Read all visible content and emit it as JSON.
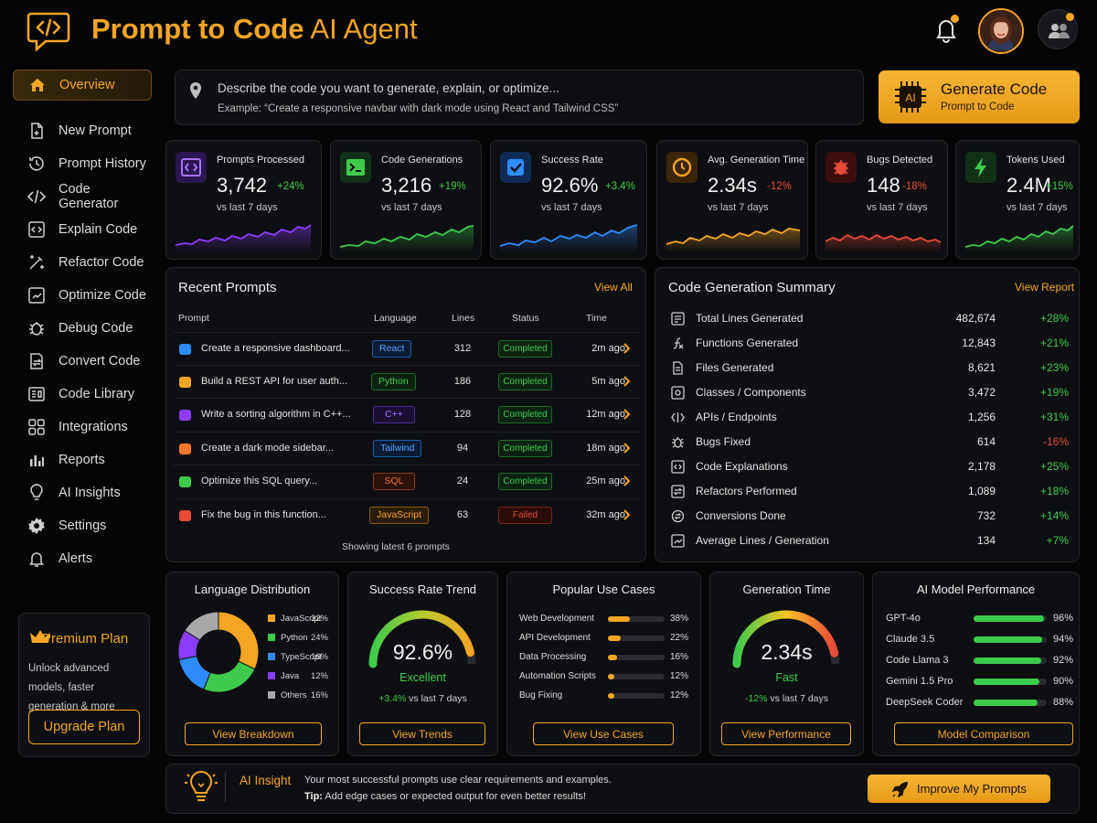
{
  "header": {
    "title_bold": "Prompt to Code",
    "title_light": " AI Agent",
    "logo_icon": "code-chat-icon"
  },
  "sidebar": {
    "items": [
      {
        "label": "Overview",
        "icon": "home-icon",
        "active": true
      },
      {
        "label": "New Prompt",
        "icon": "new-file-icon"
      },
      {
        "label": "Prompt History",
        "icon": "history-icon"
      },
      {
        "label": "Code Generator",
        "icon": "code-icon"
      },
      {
        "label": "Explain Code",
        "icon": "explain-icon"
      },
      {
        "label": "Refactor Code",
        "icon": "magic-wand-icon"
      },
      {
        "label": "Optimize Code",
        "icon": "optimize-icon"
      },
      {
        "label": "Debug Code",
        "icon": "bug-icon"
      },
      {
        "label": "Convert Code",
        "icon": "convert-icon"
      },
      {
        "label": "Code Library",
        "icon": "library-icon"
      },
      {
        "label": "Integrations",
        "icon": "grid-icon"
      },
      {
        "label": "Reports",
        "icon": "bar-chart-icon"
      },
      {
        "label": "AI Insights",
        "icon": "lightbulb-icon"
      },
      {
        "label": "Settings",
        "icon": "gear-icon"
      },
      {
        "label": "Alerts",
        "icon": "bell-icon"
      }
    ],
    "premium": {
      "title": "Premium Plan",
      "desc": "Unlock advanced models, faster generation & more",
      "button": "Upgrade Plan"
    }
  },
  "prompt": {
    "main": "Describe the code you want to generate, explain, or optimize...",
    "example": "Example: “Create a responsive navbar with dark mode using React and Tailwind CSS”"
  },
  "generate": {
    "badge": "AI",
    "label": "Generate Code",
    "sub": "Prompt to Code"
  },
  "stats": [
    {
      "label": "Prompts Processed",
      "value": "3,742",
      "change": "+24%",
      "sub": "vs last 7 days",
      "color": "#8b3dff",
      "trend": "up"
    },
    {
      "label": "Code Generations",
      "value": "3,216",
      "change": "+19%",
      "sub": "vs last 7 days",
      "color": "#3ecb4c",
      "trend": "up"
    },
    {
      "label": "Success Rate",
      "value": "92.6%",
      "change": "+3.4%",
      "sub": "vs last 7 days",
      "color": "#2f8cff",
      "trend": "up"
    },
    {
      "label": "Avg. Generation Time",
      "value": "2.34s",
      "change": "-12%",
      "sub": "vs last 7 days",
      "color": "#f5a524",
      "trend": "down"
    },
    {
      "label": "Bugs Detected",
      "value": "148",
      "change": "-18%",
      "sub": "vs last 7 days",
      "color": "#e84a3a",
      "trend": "down"
    },
    {
      "label": "Tokens Used",
      "value": "2.4M",
      "change": "+15%",
      "sub": "vs last 7 days",
      "color": "#3ecb4c",
      "trend": "up"
    }
  ],
  "recent": {
    "title": "Recent Prompts",
    "view_all": "View All",
    "columns": [
      "Prompt",
      "Language",
      "Lines",
      "Status",
      "Time"
    ],
    "rows": [
      {
        "prompt": "Create a responsive dashboard...",
        "lang": "React",
        "lang_color": "#2f8cff",
        "lines": "312",
        "status": "Completed",
        "time": "2m ago"
      },
      {
        "prompt": "Build a REST API for user auth...",
        "lang": "Python",
        "lang_color": "#3ecb4c",
        "lines": "186",
        "status": "Completed",
        "time": "5m ago"
      },
      {
        "prompt": "Write a sorting algorithm in C++...",
        "lang": "C++",
        "lang_color": "#8b3dff",
        "lines": "128",
        "status": "Completed",
        "time": "12m ago"
      },
      {
        "prompt": "Create a dark mode sidebar...",
        "lang": "Tailwind",
        "lang_color": "#2f8cff",
        "lines": "94",
        "status": "Completed",
        "time": "18m ago"
      },
      {
        "prompt": "Optimize this SQL query...",
        "lang": "SQL",
        "lang_color": "#f5762a",
        "lines": "24",
        "status": "Completed",
        "time": "25m ago"
      },
      {
        "prompt": "Fix the bug in this function...",
        "lang": "JavaScript",
        "lang_color": "#f5a524",
        "lines": "63",
        "status": "Failed",
        "time": "32m ago"
      }
    ],
    "footer": "Showing latest 6 prompts"
  },
  "summary": {
    "title": "Code Generation Summary",
    "link": "View Report",
    "rows": [
      {
        "label": "Total Lines Generated",
        "value": "482,674",
        "change": "+28%"
      },
      {
        "label": "Functions Generated",
        "value": "12,843",
        "change": "+21%"
      },
      {
        "label": "Files Generated",
        "value": "8,621",
        "change": "+23%"
      },
      {
        "label": "Classes / Components",
        "value": "3,472",
        "change": "+19%"
      },
      {
        "label": "APIs / Endpoints",
        "value": "1,256",
        "change": "+31%"
      },
      {
        "label": "Bugs Fixed",
        "value": "614",
        "change": "-16%"
      },
      {
        "label": "Code Explanations",
        "value": "2,178",
        "change": "+25%"
      },
      {
        "label": "Refactors Performed",
        "value": "1,089",
        "change": "+18%"
      },
      {
        "label": "Conversions Done",
        "value": "732",
        "change": "+14%"
      },
      {
        "label": "Average Lines / Generation",
        "value": "134",
        "change": "+7%"
      }
    ]
  },
  "language_dist": {
    "title": "Language Distribution",
    "button": "View Breakdown",
    "items": [
      {
        "name": "JavaScript",
        "pct": "32%",
        "value": 32,
        "color": "#f5a524"
      },
      {
        "name": "Python",
        "pct": "24%",
        "value": 24,
        "color": "#3ecb4c"
      },
      {
        "name": "TypeScript",
        "pct": "16%",
        "value": 16,
        "color": "#2f8cff"
      },
      {
        "name": "Java",
        "pct": "12%",
        "value": 12,
        "color": "#8b3dff"
      },
      {
        "name": "Others",
        "pct": "16%",
        "value": 16,
        "color": "#a8a8a8"
      }
    ]
  },
  "success_trend": {
    "title": "Success Rate Trend",
    "value": "92.6%",
    "fraction": 0.926,
    "status": "Excellent",
    "change": "+3.4%",
    "change_sub": " vs last 7 days",
    "button": "View Trends"
  },
  "use_cases": {
    "title": "Popular Use Cases",
    "button": "View Use Cases",
    "items": [
      {
        "name": "Web Development",
        "pct": "38%",
        "value": 38
      },
      {
        "name": "API Development",
        "pct": "22%",
        "value": 22
      },
      {
        "name": "Data Processing",
        "pct": "16%",
        "value": 16
      },
      {
        "name": "Automation Scripts",
        "pct": "12%",
        "value": 12
      },
      {
        "name": "Bug Fixing",
        "pct": "12%",
        "value": 12
      }
    ]
  },
  "gen_time": {
    "title": "Generation Time",
    "value": "2.34s",
    "fraction": 0.93,
    "status": "Fast",
    "change": "-12%",
    "change_sub": " vs last 7 days",
    "button": "View Performance"
  },
  "models": {
    "title": "AI Model Performance",
    "button": "Model Comparison",
    "items": [
      {
        "name": "GPT-4o",
        "pct": "96%",
        "value": 96
      },
      {
        "name": "Claude 3.5",
        "pct": "94%",
        "value": 94
      },
      {
        "name": "Code Llama 3",
        "pct": "92%",
        "value": 92
      },
      {
        "name": "Gemini 1.5 Pro",
        "pct": "90%",
        "value": 90
      },
      {
        "name": "DeepSeek Coder",
        "pct": "88%",
        "value": 88
      }
    ]
  },
  "insight": {
    "title": "AI Insight",
    "text": "Your most successful prompts use clear requirements and examples.",
    "tip_label": "Tip:",
    "tip": " Add edge cases or expected output for even better results!",
    "button": "Improve My Prompts"
  }
}
